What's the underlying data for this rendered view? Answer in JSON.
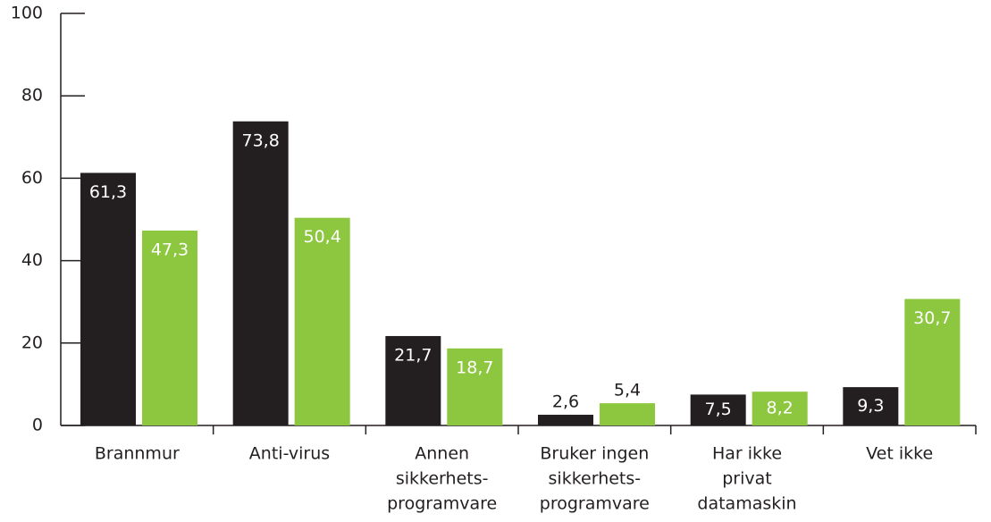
{
  "chart_data": {
    "type": "bar",
    "categories": [
      [
        "Brannmur"
      ],
      [
        "Anti-virus"
      ],
      [
        "Annen",
        "sikkerhets-",
        "programvare"
      ],
      [
        "Bruker ingen",
        "sikkerhets-",
        "programvare"
      ],
      [
        "Har ikke",
        "privat",
        "datamaskin"
      ],
      [
        "Vet ikke"
      ]
    ],
    "series": [
      {
        "color": "#231f20",
        "values": [
          61.3,
          73.8,
          21.7,
          2.6,
          7.5,
          9.3
        ],
        "value_labels": [
          "61,3",
          "73,8",
          "21,7",
          "2,6",
          "7,5",
          "9,3"
        ]
      },
      {
        "color": "#8dc63f",
        "values": [
          47.3,
          50.4,
          18.7,
          5.4,
          8.2,
          30.7
        ],
        "value_labels": [
          "47,3",
          "50,4",
          "18,7",
          "5,4",
          "8,2",
          "30,7"
        ]
      }
    ],
    "ylim": [
      0,
      100
    ],
    "yticks": [
      0,
      20,
      40,
      60,
      80,
      100
    ]
  }
}
